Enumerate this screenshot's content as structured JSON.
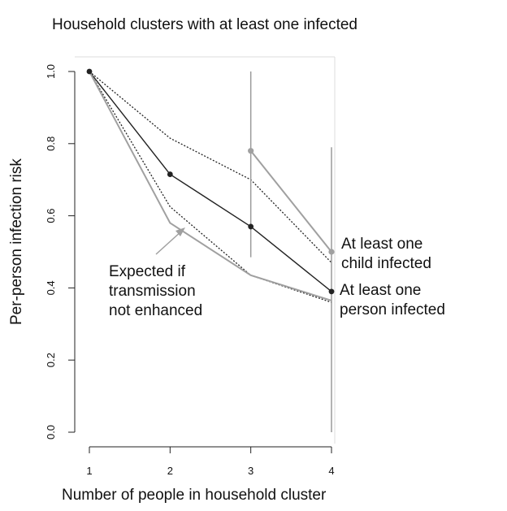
{
  "chart_data": {
    "type": "line",
    "title": "Household clusters with at least one infected",
    "xlabel": "Number of people in household cluster",
    "ylabel": "Per-person infection risk",
    "x": [
      1,
      2,
      3,
      4
    ],
    "xticks": [
      "1",
      "2",
      "3",
      "4"
    ],
    "yticks": [
      "0.0",
      "0.2",
      "0.4",
      "0.6",
      "0.8",
      "1.0"
    ],
    "ylim": [
      0,
      1
    ],
    "series": [
      {
        "name": "At least one person infected",
        "style": "solid",
        "color": "#222222",
        "values": [
          1.0,
          0.715,
          0.57,
          0.39
        ],
        "markers": true,
        "ci_lower": [
          null,
          0.625,
          0.435,
          0.36
        ],
        "ci_upper": [
          null,
          0.815,
          0.7,
          0.47
        ]
      },
      {
        "name": "At least one child infected",
        "style": "solid",
        "color": "#a0a0a0",
        "x": [
          3,
          4
        ],
        "values": [
          0.78,
          0.5
        ],
        "markers": true,
        "error_lower": [
          0.485,
          0.0
        ],
        "error_upper": [
          1.0,
          0.79
        ]
      },
      {
        "name": "Expected if transmission not enhanced",
        "style": "solid",
        "color": "#a0a0a0",
        "values": [
          1.0,
          0.58,
          0.435,
          0.365
        ],
        "markers": false
      }
    ],
    "annotations": [
      {
        "lines": [
          "At least one",
          "child infected"
        ]
      },
      {
        "lines": [
          "At least one",
          "person infected"
        ]
      },
      {
        "lines": [
          "Expected if",
          "transmission",
          "not enhanced"
        ]
      }
    ],
    "grid": false,
    "legend": "none"
  }
}
